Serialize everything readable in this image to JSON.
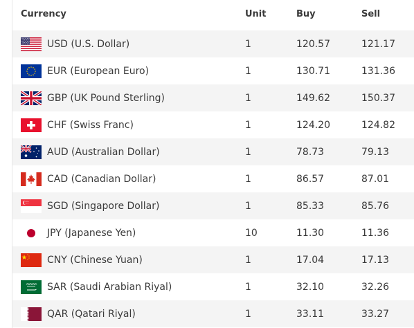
{
  "headers": {
    "currency": "Currency",
    "unit": "Unit",
    "buy": "Buy",
    "sell": "Sell"
  },
  "rows": [
    {
      "code": "usd",
      "name": "USD (U.S. Dollar)",
      "unit": "1",
      "buy": "120.57",
      "sell": "121.17",
      "flag_icon": "us-flag-icon"
    },
    {
      "code": "eur",
      "name": "EUR (European Euro)",
      "unit": "1",
      "buy": "130.71",
      "sell": "131.36",
      "flag_icon": "eu-flag-icon"
    },
    {
      "code": "gbp",
      "name": "GBP (UK Pound Sterling)",
      "unit": "1",
      "buy": "149.62",
      "sell": "150.37",
      "flag_icon": "uk-flag-icon"
    },
    {
      "code": "chf",
      "name": "CHF (Swiss Franc)",
      "unit": "1",
      "buy": "124.20",
      "sell": "124.82",
      "flag_icon": "swiss-flag-icon"
    },
    {
      "code": "aud",
      "name": "AUD (Australian Dollar)",
      "unit": "1",
      "buy": "78.73",
      "sell": "79.13",
      "flag_icon": "australia-flag-icon"
    },
    {
      "code": "cad",
      "name": "CAD (Canadian Dollar)",
      "unit": "1",
      "buy": "86.57",
      "sell": "87.01",
      "flag_icon": "canada-flag-icon"
    },
    {
      "code": "sgd",
      "name": "SGD (Singapore Dollar)",
      "unit": "1",
      "buy": "85.33",
      "sell": "85.76",
      "flag_icon": "singapore-flag-icon"
    },
    {
      "code": "jpy",
      "name": "JPY (Japanese Yen)",
      "unit": "10",
      "buy": "11.30",
      "sell": "11.36",
      "flag_icon": "japan-flag-icon"
    },
    {
      "code": "cny",
      "name": "CNY (Chinese Yuan)",
      "unit": "1",
      "buy": "17.04",
      "sell": "17.13",
      "flag_icon": "china-flag-icon"
    },
    {
      "code": "sar",
      "name": "SAR (Saudi Arabian Riyal)",
      "unit": "1",
      "buy": "32.10",
      "sell": "32.26",
      "flag_icon": "saudi-flag-icon"
    },
    {
      "code": "qar",
      "name": "QAR (Qatari Riyal)",
      "unit": "1",
      "buy": "33.11",
      "sell": "33.27",
      "flag_icon": "qatar-flag-icon"
    }
  ],
  "colors": {
    "row_alt": "#f4f4f4",
    "row": "#ffffff",
    "text": "#3a3a3a"
  }
}
